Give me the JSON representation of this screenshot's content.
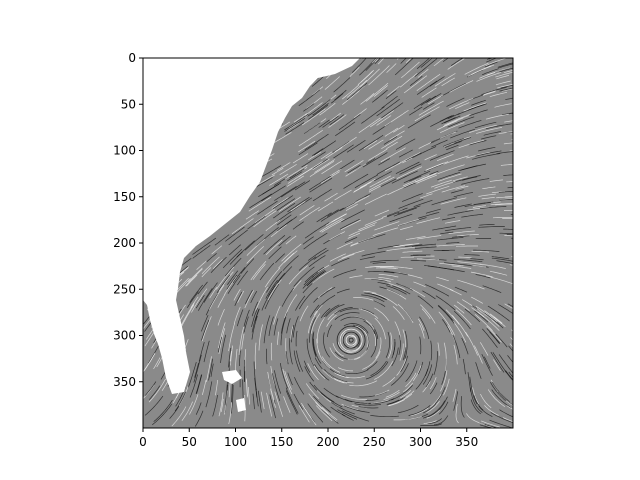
{
  "chart_data": {
    "type": "heatmap",
    "subtype": "line integral convolution (flow texture) image",
    "colormap": "grayscale",
    "title": "",
    "xlabel": "",
    "ylabel": "",
    "xlim": [
      0,
      400
    ],
    "ylim": [
      400,
      0
    ],
    "y_axis_inverted": true,
    "grid": false,
    "x_ticks": [
      0,
      50,
      100,
      150,
      200,
      250,
      300,
      350
    ],
    "y_ticks": [
      0,
      50,
      100,
      150,
      200,
      250,
      300,
      350
    ],
    "x_tick_labels": [
      "0",
      "50",
      "100",
      "150",
      "200",
      "250",
      "300",
      "350"
    ],
    "y_tick_labels": [
      "0",
      "50",
      "100",
      "150",
      "200",
      "250",
      "300",
      "350"
    ],
    "vortex_center": [
      225,
      305
    ],
    "land_color": "#ffffff",
    "axis_color": "#000000"
  }
}
